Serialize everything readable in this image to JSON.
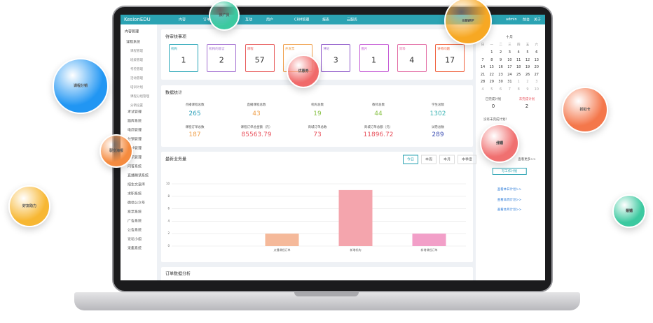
{
  "bubbles": [
    {
      "lines": [
        "课程分销"
      ],
      "color": "#2196f3"
    },
    {
      "lines": [
        "推广员"
      ],
      "color": "#3cc9a0"
    },
    {
      "lines": [
        "VIP",
        "&SVIP"
      ],
      "color": "#f7a823"
    },
    {
      "lines": [
        "优惠券"
      ],
      "color": "#f06a6a"
    },
    {
      "lines": [
        "折扣卡"
      ],
      "color": "#f4774b"
    },
    {
      "lines": [
        "裂变海报"
      ],
      "color": "#f58b3f"
    },
    {
      "lines": [
        "代理",
        "分销"
      ],
      "color": "#f07070"
    },
    {
      "lines": [
        "好友助力"
      ],
      "color": "#f7b733"
    },
    {
      "lines": [
        "渠道",
        "分销"
      ],
      "color": "#3cc9a0"
    }
  ],
  "app": {
    "brand": "KesionEDU",
    "nav": [
      "内容",
      "订单",
      "互动",
      "用户",
      "CRM管理",
      "报表",
      "云服务"
    ],
    "user": "admin",
    "top_links": [
      "前台",
      "关于"
    ]
  },
  "sidebar": {
    "title": "内容管理",
    "open_group": "课程系统",
    "open_items": [
      "课程管理",
      "班级管理",
      "考检管理",
      "活动管理",
      "培训计划",
      "课程分组管理",
      "分销设置"
    ],
    "groups": [
      "考试管理",
      "题库系统",
      "电商管理",
      "分销管理",
      "订单管理",
      "资讯管理",
      "问答系统",
      "直播精读系统",
      "招生文章库",
      "求职系统",
      "微信公众号",
      "投票系统",
      "广告系统",
      "公告系统",
      "论坛小组",
      "采集系统"
    ]
  },
  "pending": {
    "title": "待审核事项",
    "cards": [
      {
        "label": "机构",
        "value": 1,
        "color": "#2aa7b8"
      },
      {
        "label": "机构的留言",
        "value": 2,
        "color": "#a36fd1"
      },
      {
        "label": "课程",
        "value": 57,
        "color": "#e85a5a"
      },
      {
        "label": "开发票",
        "color": "#f0a04b"
      },
      {
        "label": "评论",
        "value": 3,
        "color": "#8e57c9"
      },
      {
        "label": "图片",
        "value": 1,
        "color": "#c55bd6"
      },
      {
        "label": "资料",
        "value": 4,
        "color": "#e26aa3"
      },
      {
        "label": "讲师问题",
        "value": 17,
        "color": "#f0603c"
      }
    ]
  },
  "stats": {
    "title": "数据统计",
    "items": [
      {
        "label": "点播课程总数",
        "value": 265,
        "color": "#2a9fb8"
      },
      {
        "label": "直播课程总数",
        "value": 43,
        "color": "#f0a04b"
      },
      {
        "label": "机构总数",
        "value": 19,
        "color": "#8bc34a"
      },
      {
        "label": "教师总数",
        "value": 44,
        "color": "#8bc34a"
      },
      {
        "label": "学生总数",
        "value": 1302,
        "color": "#3cb4b4"
      },
      {
        "label": "课程订单总数",
        "value": 187,
        "color": "#f0a04b"
      },
      {
        "label": "课程订单总金额（元）",
        "value": 85563.79,
        "color": "#e8505b"
      },
      {
        "label": "商城订单总数",
        "value": 73,
        "color": "#e8505b"
      },
      {
        "label": "商城订单总额（元）",
        "value": 11896.72,
        "color": "#e8505b"
      },
      {
        "label": "试卷总数",
        "value": 289,
        "color": "#3f51b5"
      }
    ]
  },
  "business": {
    "type": "bar",
    "title": "最新业务量",
    "tabs": [
      "今日",
      "本周",
      "本月",
      "本季度"
    ],
    "categories": [
      "点播课程订单",
      "新增机构",
      "新增课程订单"
    ],
    "values": [
      2,
      9,
      2
    ],
    "colors": [
      "#f5b99a",
      "#f4a5ad",
      "#f29fc8"
    ],
    "ylim": [
      0,
      10
    ],
    "yticks": [
      0,
      2,
      4,
      6,
      8,
      10
    ],
    "grid": true
  },
  "orders": {
    "title": "订单数据分析"
  },
  "calendar": {
    "month": "十月",
    "weekdays": [
      "日",
      "一",
      "二",
      "三",
      "四",
      "五",
      "六"
    ],
    "rows": [
      [
        "",
        "1",
        "2",
        "3",
        "4",
        "5",
        "6"
      ],
      [
        "7",
        "8",
        "9",
        "10",
        "11",
        "12",
        "13"
      ],
      [
        "14",
        "15",
        "16",
        "17",
        "18",
        "19",
        "20"
      ],
      [
        "21",
        "22",
        "23",
        "24",
        "25",
        "26",
        "27"
      ],
      [
        "28",
        "29",
        "30",
        "31",
        "1",
        "2",
        "3"
      ],
      [
        "4",
        "5",
        "6",
        "7",
        "8",
        "9",
        "10"
      ]
    ]
  },
  "plans": {
    "done_label": "已完成计划",
    "done": 0,
    "todo_label": "未完成计划",
    "todo": 2,
    "empty": "没有未完成计划！",
    "more": "查看更多>>",
    "button": "写工作计划",
    "links": [
      "查看本日计划>>",
      "查看本周计划>>",
      "查看本月计划>>"
    ]
  }
}
